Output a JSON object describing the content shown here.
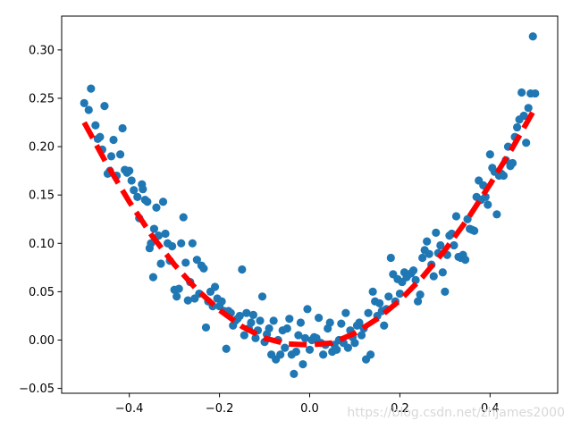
{
  "chart_data": {
    "type": "scatter",
    "title": "",
    "xlabel": "",
    "ylabel": "",
    "xlim": [
      -0.55,
      0.55
    ],
    "ylim": [
      -0.055,
      0.335
    ],
    "grid": false,
    "x_ticks": [
      -0.4,
      -0.2,
      0.0,
      0.2,
      0.4
    ],
    "x_tick_labels": [
      "−0.4",
      "−0.2",
      "0.0",
      "0.2",
      "0.4"
    ],
    "y_ticks": [
      -0.05,
      0.0,
      0.05,
      0.1,
      0.15,
      0.2,
      0.25,
      0.3
    ],
    "y_tick_labels": [
      "−0.05",
      "0.00",
      "0.05",
      "0.10",
      "0.15",
      "0.20",
      "0.25",
      "0.30"
    ],
    "series": [
      {
        "kind": "scatter",
        "color": "#1f77b4",
        "points": [
          [
            -0.5,
            0.245
          ],
          [
            -0.49,
            0.238
          ],
          [
            -0.485,
            0.26
          ],
          [
            -0.475,
            0.222
          ],
          [
            -0.47,
            0.208
          ],
          [
            -0.465,
            0.21
          ],
          [
            -0.46,
            0.197
          ],
          [
            -0.455,
            0.242
          ],
          [
            -0.448,
            0.172
          ],
          [
            -0.443,
            0.175
          ],
          [
            -0.44,
            0.19
          ],
          [
            -0.435,
            0.207
          ],
          [
            -0.428,
            0.17
          ],
          [
            -0.42,
            0.192
          ],
          [
            -0.415,
            0.219
          ],
          [
            -0.41,
            0.176
          ],
          [
            -0.405,
            0.173
          ],
          [
            -0.4,
            0.175
          ],
          [
            -0.395,
            0.165
          ],
          [
            -0.39,
            0.155
          ],
          [
            -0.382,
            0.148
          ],
          [
            -0.378,
            0.126
          ],
          [
            -0.372,
            0.161
          ],
          [
            -0.37,
            0.156
          ],
          [
            -0.365,
            0.145
          ],
          [
            -0.36,
            0.143
          ],
          [
            -0.355,
            0.095
          ],
          [
            -0.352,
            0.1
          ],
          [
            -0.347,
            0.065
          ],
          [
            -0.345,
            0.115
          ],
          [
            -0.34,
            0.137
          ],
          [
            -0.335,
            0.108
          ],
          [
            -0.33,
            0.079
          ],
          [
            -0.325,
            0.143
          ],
          [
            -0.32,
            0.11
          ],
          [
            -0.315,
            0.1
          ],
          [
            -0.31,
            0.082
          ],
          [
            -0.305,
            0.097
          ],
          [
            -0.3,
            0.052
          ],
          [
            -0.295,
            0.045
          ],
          [
            -0.29,
            0.053
          ],
          [
            -0.285,
            0.1
          ],
          [
            -0.28,
            0.127
          ],
          [
            -0.275,
            0.08
          ],
          [
            -0.27,
            0.041
          ],
          [
            -0.265,
            0.06
          ],
          [
            -0.26,
            0.1
          ],
          [
            -0.255,
            0.043
          ],
          [
            -0.25,
            0.083
          ],
          [
            -0.245,
            0.048
          ],
          [
            -0.24,
            0.077
          ],
          [
            -0.235,
            0.074
          ],
          [
            -0.23,
            0.013
          ],
          [
            -0.225,
            0.04
          ],
          [
            -0.22,
            0.05
          ],
          [
            -0.215,
            0.035
          ],
          [
            -0.21,
            0.055
          ],
          [
            -0.205,
            0.043
          ],
          [
            -0.2,
            0.035
          ],
          [
            -0.195,
            0.04
          ],
          [
            -0.19,
            0.03
          ],
          [
            -0.185,
            -0.009
          ],
          [
            -0.18,
            0.03
          ],
          [
            -0.175,
            0.028
          ],
          [
            -0.17,
            0.015
          ],
          [
            -0.165,
            0.02
          ],
          [
            -0.16,
            0.022
          ],
          [
            -0.155,
            0.025
          ],
          [
            -0.15,
            0.073
          ],
          [
            -0.145,
            0.005
          ],
          [
            -0.14,
            0.028
          ],
          [
            -0.135,
            0.012
          ],
          [
            -0.13,
            0.018
          ],
          [
            -0.125,
            0.026
          ],
          [
            -0.12,
            0.002
          ],
          [
            -0.115,
            0.01
          ],
          [
            -0.11,
            0.02
          ],
          [
            -0.105,
            0.045
          ],
          [
            -0.1,
            -0.002
          ],
          [
            -0.095,
            0.006
          ],
          [
            -0.09,
            0.012
          ],
          [
            -0.085,
            -0.015
          ],
          [
            -0.08,
            0.02
          ],
          [
            -0.075,
            -0.02
          ],
          [
            -0.07,
            0.0
          ],
          [
            -0.065,
            -0.015
          ],
          [
            -0.06,
            0.01
          ],
          [
            -0.055,
            -0.008
          ],
          [
            -0.05,
            0.012
          ],
          [
            -0.045,
            0.022
          ],
          [
            -0.04,
            -0.015
          ],
          [
            -0.035,
            -0.035
          ],
          [
            -0.03,
            -0.012
          ],
          [
            -0.025,
            0.005
          ],
          [
            -0.02,
            0.018
          ],
          [
            -0.015,
            -0.025
          ],
          [
            -0.01,
            0.002
          ],
          [
            -0.005,
            0.032
          ],
          [
            0.0,
            -0.01
          ],
          [
            0.005,
            0.0
          ],
          [
            0.01,
            0.003
          ],
          [
            0.015,
            0.002
          ],
          [
            0.02,
            0.023
          ],
          [
            0.025,
            -0.003
          ],
          [
            0.03,
            -0.015
          ],
          [
            0.035,
            -0.005
          ],
          [
            0.04,
            0.012
          ],
          [
            0.045,
            0.018
          ],
          [
            0.05,
            -0.012
          ],
          [
            0.055,
            -0.005
          ],
          [
            0.06,
            -0.01
          ],
          [
            0.065,
            0.0
          ],
          [
            0.07,
            0.017
          ],
          [
            0.075,
            -0.003
          ],
          [
            0.08,
            0.028
          ],
          [
            0.085,
            -0.008
          ],
          [
            0.09,
            0.01
          ],
          [
            0.095,
            0.003
          ],
          [
            0.1,
            -0.003
          ],
          [
            0.105,
            0.015
          ],
          [
            0.11,
            0.018
          ],
          [
            0.115,
            0.005
          ],
          [
            0.12,
            0.012
          ],
          [
            0.125,
            -0.02
          ],
          [
            0.13,
            0.028
          ],
          [
            0.135,
            -0.015
          ],
          [
            0.14,
            0.05
          ],
          [
            0.145,
            0.04
          ],
          [
            0.15,
            0.025
          ],
          [
            0.155,
            0.038
          ],
          [
            0.16,
            0.03
          ],
          [
            0.165,
            0.015
          ],
          [
            0.17,
            0.032
          ],
          [
            0.175,
            0.045
          ],
          [
            0.18,
            0.085
          ],
          [
            0.185,
            0.068
          ],
          [
            0.19,
            0.04
          ],
          [
            0.195,
            0.063
          ],
          [
            0.2,
            0.048
          ],
          [
            0.205,
            0.06
          ],
          [
            0.21,
            0.07
          ],
          [
            0.215,
            0.065
          ],
          [
            0.22,
            0.068
          ],
          [
            0.225,
            0.069
          ],
          [
            0.23,
            0.072
          ],
          [
            0.235,
            0.062
          ],
          [
            0.24,
            0.04
          ],
          [
            0.245,
            0.047
          ],
          [
            0.25,
            0.085
          ],
          [
            0.255,
            0.093
          ],
          [
            0.26,
            0.102
          ],
          [
            0.265,
            0.089
          ],
          [
            0.27,
            0.078
          ],
          [
            0.275,
            0.066
          ],
          [
            0.28,
            0.111
          ],
          [
            0.285,
            0.09
          ],
          [
            0.29,
            0.098
          ],
          [
            0.295,
            0.07
          ],
          [
            0.3,
            0.05
          ],
          [
            0.305,
            0.088
          ],
          [
            0.31,
            0.108
          ],
          [
            0.315,
            0.11
          ],
          [
            0.32,
            0.098
          ],
          [
            0.325,
            0.128
          ],
          [
            0.33,
            0.086
          ],
          [
            0.335,
            0.085
          ],
          [
            0.34,
            0.088
          ],
          [
            0.345,
            0.083
          ],
          [
            0.35,
            0.125
          ],
          [
            0.355,
            0.115
          ],
          [
            0.36,
            0.114
          ],
          [
            0.365,
            0.113
          ],
          [
            0.37,
            0.148
          ],
          [
            0.375,
            0.165
          ],
          [
            0.38,
            0.145
          ],
          [
            0.385,
            0.16
          ],
          [
            0.39,
            0.148
          ],
          [
            0.395,
            0.14
          ],
          [
            0.4,
            0.192
          ],
          [
            0.405,
            0.178
          ],
          [
            0.41,
            0.174
          ],
          [
            0.415,
            0.13
          ],
          [
            0.42,
            0.17
          ],
          [
            0.425,
            0.172
          ],
          [
            0.43,
            0.17
          ],
          [
            0.435,
            0.186
          ],
          [
            0.44,
            0.2
          ],
          [
            0.445,
            0.18
          ],
          [
            0.45,
            0.183
          ],
          [
            0.455,
            0.21
          ],
          [
            0.46,
            0.22
          ],
          [
            0.465,
            0.228
          ],
          [
            0.47,
            0.256
          ],
          [
            0.475,
            0.232
          ],
          [
            0.48,
            0.204
          ],
          [
            0.485,
            0.24
          ],
          [
            0.49,
            0.255
          ],
          [
            0.495,
            0.314
          ],
          [
            0.5,
            0.255
          ]
        ]
      },
      {
        "kind": "line",
        "style": "dashed",
        "color": "#ff0000",
        "x": [
          -0.5,
          -0.45,
          -0.4,
          -0.35,
          -0.3,
          -0.25,
          -0.2,
          -0.15,
          -0.1,
          -0.05,
          0.0,
          0.05,
          0.1,
          0.15,
          0.2,
          0.25,
          0.3,
          0.35,
          0.4,
          0.45,
          0.5
        ],
        "y": [
          0.225,
          0.182,
          0.143,
          0.108,
          0.078,
          0.052,
          0.031,
          0.014,
          0.002,
          -0.004,
          -0.005,
          -0.003,
          0.007,
          0.022,
          0.041,
          0.065,
          0.093,
          0.125,
          0.161,
          0.199,
          0.24
        ]
      }
    ]
  },
  "watermark": {
    "text": "https://blog.csdn.net/zhjames2000"
  }
}
